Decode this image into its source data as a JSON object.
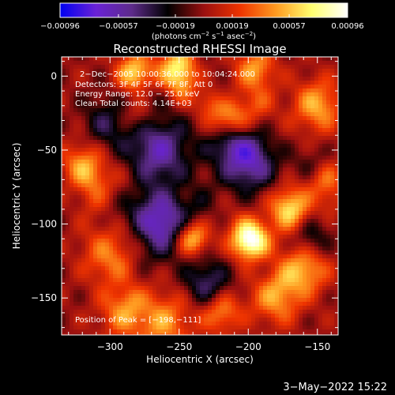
{
  "chart_data": {
    "type": "heatmap",
    "title": "Reconstructed RHESSI Image",
    "xlabel": "Heliocentric X (arcsec)",
    "ylabel": "Heliocentric Y (arcsec)",
    "xlim": [
      -335,
      -135
    ],
    "ylim": [
      -175,
      13
    ],
    "x_ticks": [
      -300,
      -250,
      -200,
      -150
    ],
    "y_ticks": [
      0,
      -50,
      -100,
      -150
    ],
    "x_tick_labels": [
      "−300",
      "−250",
      "−200",
      "−150"
    ],
    "y_tick_labels": [
      "0",
      "−50",
      "−100",
      "−150"
    ],
    "colorbar": {
      "range": [
        -0.00096,
        0.00096
      ],
      "ticks": [
        -0.00096,
        -0.00057,
        -0.00019,
        0.00019,
        0.00057,
        0.00096
      ],
      "tick_labels": [
        "−0.00096",
        "−0.00057",
        "−0.00019",
        "0.00019",
        "0.00057",
        "0.00096"
      ],
      "unit_label_parts": {
        "a": "(photons cm",
        "a_sup": "−2",
        "b": " s",
        "b_sup": "−1",
        "c": " asec",
        "c_sup": "−2",
        "d": ")"
      },
      "colormap": [
        "#0000f0",
        "#6a22d6",
        "#5d2b8a",
        "#000000",
        "#9a1010",
        "#ee3300",
        "#ff9a20",
        "#ffff70",
        "#ffffff"
      ]
    },
    "annotations": [
      "2−Dec−2005 10:00:36.000 to 10:04:24.000",
      "Detectors: 3F 4F 5F 6F 7F 8F, Att 0",
      "Energy Range: 12.0 − 25.0 keV",
      "Clean     Total counts: 4.14E+03"
    ],
    "peak_label": "Position of Peak = [−198,−111]",
    "peak_position": [
      -198,
      -111
    ],
    "sources": [
      {
        "x": -198,
        "y": -111,
        "amp": 1.0,
        "w": 9
      },
      {
        "x": -250,
        "y": 4,
        "amp": 0.85,
        "w": 10
      },
      {
        "x": -282,
        "y": 2,
        "amp": 0.7,
        "w": 9
      },
      {
        "x": -170,
        "y": -90,
        "amp": 0.7,
        "w": 10
      },
      {
        "x": -240,
        "y": -110,
        "amp": 0.65,
        "w": 8
      },
      {
        "x": -160,
        "y": -130,
        "amp": 0.6,
        "w": 12
      },
      {
        "x": -150,
        "y": -20,
        "amp": 0.55,
        "w": 12
      },
      {
        "x": -215,
        "y": -30,
        "amp": 0.55,
        "w": 10
      },
      {
        "x": -300,
        "y": -120,
        "amp": 0.5,
        "w": 14
      },
      {
        "x": -180,
        "y": -150,
        "amp": 0.5,
        "w": 12
      },
      {
        "x": -320,
        "y": -60,
        "amp": 0.5,
        "w": 10
      },
      {
        "x": -260,
        "y": -165,
        "amp": 0.45,
        "w": 14
      },
      {
        "x": -195,
        "y": 5,
        "amp": 0.5,
        "w": 10
      },
      {
        "x": -145,
        "y": -70,
        "amp": 0.4,
        "w": 10
      },
      {
        "x": -220,
        "y": -160,
        "amp": 0.4,
        "w": 10
      },
      {
        "x": -290,
        "y": -160,
        "amp": 0.45,
        "w": 12
      },
      {
        "x": -265,
        "y": -50,
        "amp": -0.6,
        "w": 16
      },
      {
        "x": -270,
        "y": -100,
        "amp": -0.7,
        "w": 16
      },
      {
        "x": -200,
        "y": -60,
        "amp": -0.6,
        "w": 14
      },
      {
        "x": -300,
        "y": -30,
        "amp": -0.45,
        "w": 12
      },
      {
        "x": -230,
        "y": -140,
        "amp": -0.45,
        "w": 12
      },
      {
        "x": -155,
        "y": -110,
        "amp": -0.35,
        "w": 10
      }
    ]
  },
  "timestamp": "3−May−2022 15:22"
}
